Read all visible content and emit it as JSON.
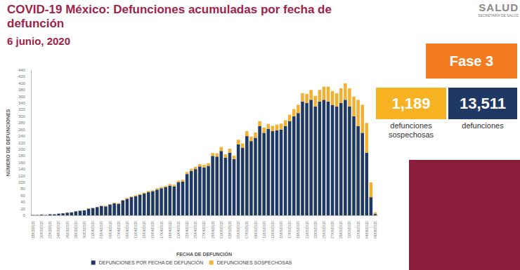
{
  "header": {
    "title": "COVID-19 México: Defunciones acumuladas por fecha de defunción",
    "date": "6 junio, 2020",
    "logo": "SALUD",
    "logo_subtitle": "SECRETARÍA DE SALUD"
  },
  "panel": {
    "phase": "Fase 3",
    "boxes": [
      {
        "value": "1,189",
        "label": "defunciones sospechosas",
        "color": "#f6b221"
      },
      {
        "value": "13,511",
        "label": "defunciones",
        "color": "#1f3864"
      }
    ]
  },
  "chart_data": {
    "type": "bar",
    "stacked": true,
    "grid": false,
    "legend": "bottom",
    "x_label": "FECHA DE DEFUNCIÓN",
    "y_label": "NÚMERO DE DEFUNCIONES",
    "categories": [
      "18/03/2020",
      null,
      "20/03/2020",
      null,
      "22/03/2020",
      null,
      "24/03/2020",
      null,
      "26/03/2020",
      null,
      "28/03/2020",
      null,
      "30/03/2020",
      null,
      "01/04/2020",
      null,
      "03/04/2020",
      null,
      "05/04/2020",
      null,
      "07/04/2020",
      null,
      "09/04/2020",
      null,
      "11/04/2020",
      null,
      "13/04/2020",
      null,
      "15/04/2020",
      null,
      "17/04/2020",
      null,
      "19/04/2020",
      null,
      "21/04/2020",
      null,
      "23/04/2020",
      null,
      "25/04/2020",
      null,
      "27/04/2020",
      null,
      "29/04/2020",
      null,
      "01/05/2020",
      null,
      "03/05/2020",
      null,
      "05/05/2020",
      null,
      "07/05/2020",
      null,
      "09/05/2020",
      null,
      "11/05/2020",
      null,
      "13/05/2020",
      null,
      "15/05/2020",
      null,
      "17/05/2020",
      null,
      "19/05/2020",
      null,
      "21/05/2020",
      null,
      "23/05/2020",
      null,
      "25/05/2020",
      null,
      "27/05/2020",
      null,
      "29/05/2020",
      null,
      "31/05/2020",
      null,
      "02/06/2020",
      null,
      "04/06/2020",
      null,
      "06/06/2020"
    ],
    "series": [
      {
        "name": "DEFUNCIONES POR FECHA DE DEFUNCIÓN",
        "color": "#1f3864",
        "values": [
          1,
          1,
          2,
          1,
          3,
          3,
          5,
          6,
          8,
          9,
          12,
          14,
          15,
          20,
          22,
          25,
          28,
          27,
          33,
          36,
          35,
          45,
          50,
          55,
          58,
          62,
          66,
          70,
          73,
          78,
          82,
          85,
          90,
          88,
          100,
          102,
          125,
          135,
          140,
          148,
          145,
          150,
          180,
          178,
          195,
          175,
          190,
          170,
          215,
          205,
          240,
          225,
          235,
          270,
          250,
          262,
          255,
          258,
          260,
          270,
          285,
          300,
          310,
          345,
          340,
          350,
          330,
          345,
          350,
          345,
          335,
          330,
          340,
          350,
          330,
          300,
          270,
          250,
          190,
          55,
          4
        ]
      },
      {
        "name": "DEFUNCIONES SOSPECHOSAS",
        "color": "#f2b134",
        "values": [
          0,
          0,
          0,
          0,
          0,
          0,
          0,
          0,
          0,
          0,
          0,
          1,
          0,
          1,
          1,
          1,
          1,
          2,
          1,
          2,
          2,
          2,
          3,
          2,
          3,
          3,
          3,
          4,
          3,
          4,
          4,
          4,
          5,
          5,
          5,
          6,
          6,
          6,
          7,
          7,
          8,
          8,
          9,
          10,
          12,
          10,
          12,
          11,
          14,
          13,
          15,
          14,
          16,
          15,
          16,
          15,
          16,
          17,
          18,
          18,
          20,
          22,
          25,
          25,
          28,
          30,
          32,
          35,
          40,
          45,
          42,
          40,
          45,
          50,
          55,
          60,
          80,
          85,
          90,
          45,
          5
        ]
      }
    ],
    "ylim": [
      0,
      440
    ],
    "yticks": [
      0,
      20,
      40,
      60,
      80,
      100,
      120,
      140,
      160,
      180,
      200,
      220,
      240,
      260,
      280,
      300,
      320,
      340,
      360,
      380,
      400,
      420,
      440
    ]
  }
}
